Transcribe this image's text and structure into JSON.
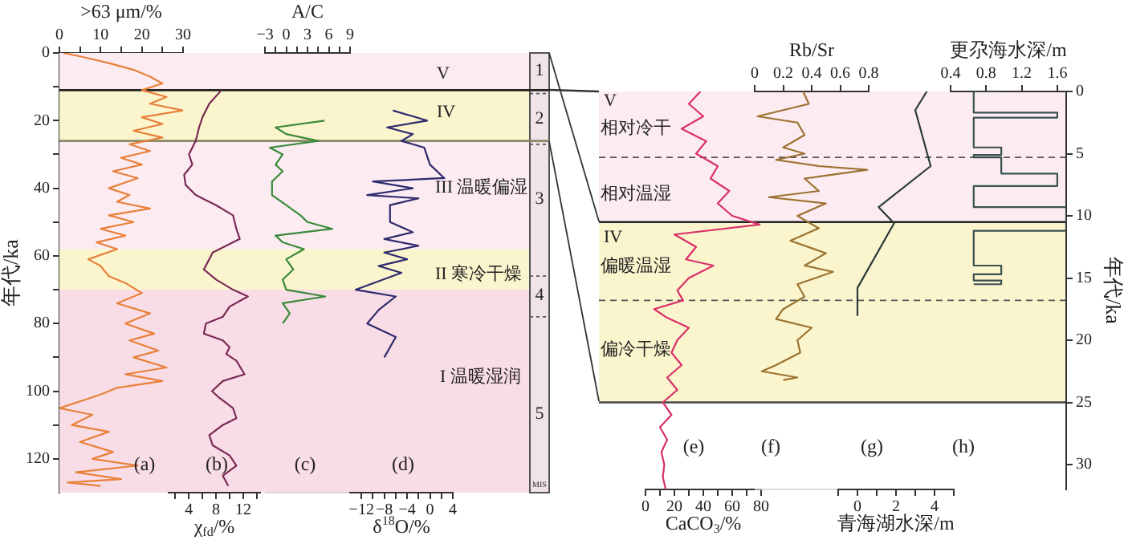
{
  "chart_data": [
    {
      "type": "line",
      "xlabel": ">63 μm/%",
      "ylabel": "年代/ka",
      "xlim": [
        0,
        30
      ],
      "xticks": [
        0,
        {
          "value": 5,
          "label": null
        },
        10,
        {
          "value": 15,
          "label": null
        },
        20,
        {
          "value": 25,
          "label": null
        },
        30
      ],
      "ylim": [
        130,
        0
      ],
      "yticks": [
        0,
        {
          "value": 10,
          "label": null
        },
        20,
        {
          "value": 30,
          "label": null
        },
        40,
        {
          "value": 50,
          "label": null
        },
        60,
        {
          "value": 70,
          "label": null
        },
        80,
        {
          "value": 90,
          "label": null
        },
        100,
        {
          "value": 110,
          "label": null
        },
        120
      ],
      "bands": [
        {
          "axis": "y",
          "from": 0,
          "to": 11,
          "color": "#fcecf2"
        },
        {
          "axis": "y",
          "from": 11,
          "to": 26,
          "color": "#fbf5cd"
        },
        {
          "axis": "y",
          "from": 26,
          "to": 58,
          "color": "#fcecf2"
        },
        {
          "axis": "y",
          "from": 58,
          "to": 70,
          "color": "#fbf5cd"
        },
        {
          "axis": "y",
          "from": 70,
          "to": 130,
          "color": "#f9dde6"
        }
      ],
      "ref_lines": [
        {
          "axis": "y",
          "value": 11,
          "color": "#222222"
        },
        {
          "axis": "y",
          "value": 26,
          "color": "#8a8a6a"
        }
      ],
      "annotations": [
        "(a)",
        "1",
        "2",
        "3",
        "4",
        "5",
        "MIS"
      ],
      "series": [
        {
          "color": "#e8803a",
          "x": [
            1,
            5,
            12,
            18,
            22,
            25,
            20,
            26,
            22,
            30,
            20,
            25,
            18,
            25,
            17,
            22,
            15,
            20,
            13,
            19,
            12,
            17,
            14,
            22,
            12,
            18,
            10,
            16,
            9,
            14,
            7,
            10,
            12,
            16,
            20,
            14,
            22,
            16,
            23,
            17,
            24,
            18,
            26,
            16,
            25,
            14,
            10,
            5,
            0,
            8,
            3,
            12,
            5,
            13,
            8,
            19,
            4,
            15,
            2,
            10
          ],
          "values": [
            0,
            1,
            3,
            5,
            7,
            9,
            11,
            13,
            15,
            17,
            19,
            21,
            23,
            25,
            27,
            29,
            31,
            33,
            35,
            37,
            40,
            42,
            44,
            46,
            48,
            50,
            52,
            54,
            56,
            58,
            61,
            63,
            66,
            68,
            71,
            74,
            77,
            80,
            83,
            85,
            88,
            90,
            93,
            95,
            97,
            99,
            101,
            103,
            105,
            107,
            110,
            112,
            115,
            118,
            120,
            122,
            124,
            126,
            127,
            128
          ]
        }
      ]
    },
    {
      "type": "line",
      "xlabel": "χ$_{fd}$/%",
      "xlim": [
        1,
        14.5
      ],
      "xticks": [
        {
          "value": 2,
          "label": null
        },
        4,
        {
          "value": 6,
          "label": null
        },
        8,
        {
          "value": 10,
          "label": null
        },
        12,
        {
          "value": 14,
          "label": null
        }
      ],
      "ylim": [
        130,
        0
      ],
      "tick_labels": "x",
      "annotations": [
        "(b)"
      ],
      "series": [
        {
          "color": "#7a2a55",
          "x": [
            8.8,
            7,
            6,
            5.5,
            5,
            4,
            4.5,
            3.3,
            3.5,
            5,
            8,
            10.5,
            11,
            11.5,
            9.5,
            7.5,
            7,
            6.2,
            8,
            10.5,
            12.7,
            10,
            9,
            6.5,
            6.2,
            9,
            10,
            9.5,
            11,
            12.2,
            9,
            7.4,
            8.5,
            10.5,
            11,
            9,
            7,
            7.5,
            10,
            11,
            9,
            9.8
          ],
          "values": [
            11,
            15,
            19,
            22,
            26,
            30,
            33,
            36,
            39,
            42,
            45,
            48,
            52,
            55,
            57,
            59,
            61,
            64,
            67,
            70,
            72,
            75,
            78,
            80,
            83,
            85,
            87,
            89,
            91,
            95,
            97,
            100,
            102,
            105,
            108,
            110,
            113,
            116,
            119,
            122,
            125,
            128
          ]
        }
      ]
    },
    {
      "type": "line",
      "xlabel": "A/C",
      "xlim": [
        -3,
        9
      ],
      "xticks": [
        {
          "value": -3,
          "label": "−3"
        },
        {
          "value": -1.5,
          "label": null
        },
        0,
        {
          "value": 1.5,
          "label": null
        },
        3,
        {
          "value": 4.5,
          "label": null
        },
        6,
        {
          "value": 7.5,
          "label": null
        },
        9
      ],
      "ylim": [
        130,
        0
      ],
      "tick_labels": "x",
      "annotations": [
        "(c)"
      ],
      "series": [
        {
          "color": "#3a8a3a",
          "x": [
            5.4,
            -1.5,
            0,
            4.5,
            -2.3,
            -0.5,
            -1.5,
            -0.5,
            -2,
            -2,
            0,
            2,
            3,
            6.5,
            -1.5,
            -0.5,
            2.5,
            0,
            1,
            -0.5,
            0,
            5.5,
            -0.5,
            0.5,
            -0.5
          ],
          "values": [
            20,
            22,
            24,
            26,
            28,
            30,
            33,
            35,
            38,
            42,
            45,
            48,
            50,
            52,
            54,
            56,
            58,
            61,
            64,
            67,
            70,
            72,
            74,
            77,
            80
          ]
        }
      ]
    },
    {
      "type": "line",
      "xlabel": "δ$^{18}$O/%",
      "xlim": [
        -14,
        4
      ],
      "xticks": [
        {
          "value": -12,
          "label": "−12"
        },
        {
          "value": -10,
          "label": null
        },
        {
          "value": -8,
          "label": "−8"
        },
        {
          "value": -6,
          "label": null
        },
        {
          "value": -4,
          "label": "−4"
        },
        {
          "value": -2,
          "label": null
        },
        0,
        {
          "value": 2,
          "label": null
        },
        4
      ],
      "ylim": [
        130,
        0
      ],
      "tick_labels": "x",
      "annotations": [
        "(d)",
        "V",
        "IV",
        "III 温暖偏湿",
        "II 寒冷干燥",
        "I 温暖湿润"
      ],
      "series": [
        {
          "color": "#2e2a6e",
          "x": [
            -6.5,
            -0.5,
            -7.5,
            -3,
            -5,
            -1,
            0,
            2.5,
            -10,
            -3,
            -11,
            -2,
            -7,
            -7,
            -3,
            -8,
            -2,
            -8,
            -4,
            -9,
            -5,
            -13,
            -6,
            -9,
            -11,
            -6,
            -7,
            -8
          ],
          "values": [
            17,
            20,
            22,
            24,
            26,
            28,
            33,
            37,
            38,
            40,
            42,
            43,
            45,
            50,
            53,
            55,
            57,
            59,
            61,
            63,
            65,
            70,
            72,
            76,
            80,
            84,
            87,
            90
          ]
        }
      ]
    },
    {
      "type": "line",
      "xlabel": "CaCO$_{3}$/%",
      "xlim": [
        0,
        80
      ],
      "xticks": [
        0,
        {
          "value": 10,
          "label": null
        },
        20,
        {
          "value": 30,
          "label": null
        },
        40,
        {
          "value": 50,
          "label": null
        },
        60,
        {
          "value": 70,
          "label": null
        },
        80
      ],
      "ylim": [
        32,
        0
      ],
      "tick_labels": "x",
      "bands": [
        {
          "axis": "y",
          "from": 0,
          "to": 10.5,
          "color": "#fcecf2"
        },
        {
          "axis": "y",
          "from": 10.5,
          "to": 25,
          "color": "#fbf5cd"
        }
      ],
      "ref_lines": [
        {
          "axis": "y",
          "value": 10.5,
          "color": "#222222"
        },
        {
          "axis": "y",
          "value": 25,
          "color": "#444444"
        },
        {
          "axis": "y",
          "value": 5.3,
          "color": "#555555",
          "line_style": "dashed"
        },
        {
          "axis": "y",
          "value": 16.8,
          "color": "#555555",
          "line_style": "dashed"
        }
      ],
      "annotations": [
        "(e)",
        "V",
        "相对冷干",
        "相对温湿",
        "IV",
        "偏暖温湿",
        "偏冷干燥"
      ],
      "series": [
        {
          "color": "#d9306a",
          "x": [
            38,
            30,
            40,
            25,
            42,
            35,
            50,
            45,
            58,
            50,
            60,
            79,
            20,
            35,
            28,
            47,
            30,
            22,
            26,
            6,
            15,
            30,
            22,
            18,
            25,
            15,
            22,
            12,
            18,
            10,
            15,
            11,
            13,
            12,
            14
          ],
          "values": [
            0,
            1,
            2,
            3,
            4,
            5,
            6,
            7,
            8,
            9,
            10,
            10.7,
            11.5,
            12.5,
            13.5,
            14,
            15,
            16,
            16.8,
            17.5,
            18.2,
            19,
            20,
            21,
            22,
            23,
            24,
            25,
            26,
            27,
            28,
            29,
            30,
            31,
            32
          ]
        }
      ]
    },
    {
      "type": "line",
      "xlabel": "Rb/Sr",
      "xlim": [
        0,
        0.8
      ],
      "xticks": [
        0,
        0.2,
        0.4,
        0.6,
        0.8
      ],
      "ylim": [
        32,
        0
      ],
      "tick_labels": "x",
      "annotations": [
        "(f)"
      ],
      "series": [
        {
          "color": "#9c7230",
          "x": [
            0.34,
            0.38,
            0.02,
            0.3,
            0.35,
            0.2,
            0.35,
            0.15,
            0.45,
            0.79,
            0.35,
            0.45,
            0.1,
            0.5,
            0.3,
            0.45,
            0.25,
            0.5,
            0.35,
            0.55,
            0.3,
            0.35,
            0.2,
            0.15,
            0.4,
            0.3,
            0.32,
            0.15,
            0.05,
            0.3,
            0.2
          ],
          "values": [
            0,
            1,
            2,
            2.5,
            3.5,
            4.5,
            5,
            5.5,
            6,
            6.3,
            7,
            8,
            8.5,
            9,
            10,
            11,
            12,
            13,
            14,
            14.5,
            15.5,
            16.5,
            17.5,
            18.3,
            19,
            20,
            21,
            22,
            22.5,
            23,
            23.2
          ]
        }
      ]
    },
    {
      "type": "line",
      "xlabel": "青海湖水深/m",
      "xlim": [
        -1,
        5
      ],
      "xticks": [
        {
          "value": -1,
          "label": null
        },
        0,
        {
          "value": 1,
          "label": null
        },
        2,
        {
          "value": 3,
          "label": null
        },
        4,
        {
          "value": 5,
          "label": null
        }
      ],
      "ylim": [
        32,
        0
      ],
      "tick_labels": "x",
      "annotations": [
        "(g)"
      ],
      "series": [
        {
          "color": "#2a3a3a",
          "x": [
            3.6,
            3.0,
            3.8,
            1.1,
            1.9,
            0,
            0
          ],
          "values": [
            0,
            1.5,
            6,
            9.3,
            10.6,
            15.8,
            18
          ]
        }
      ]
    },
    {
      "type": "line",
      "xlabel": "更尕海水深/m",
      "ylabel": "年代/ka",
      "xlim": [
        0.4,
        1.7
      ],
      "xticks": [
        0.4,
        0.8,
        1.2,
        1.6
      ],
      "ylim": [
        32,
        0
      ],
      "yticks": [
        0,
        5,
        10,
        15,
        20,
        25,
        30
      ],
      "annotations": [
        "(h)"
      ],
      "series": [
        {
          "color": "#3a5050",
          "x": [
            0.97,
            0.66,
            0.66,
            1.6,
            1.6,
            0.66,
            0.66,
            0.97,
            0.97,
            0.66,
            0.66,
            0.97,
            0.97,
            1.6,
            1.6,
            0.66,
            0.66,
            1.7,
            1.7,
            0.66,
            0.66,
            0.97,
            0.97,
            0.66,
            0.66,
            0.97,
            0.97,
            0.66
          ],
          "values": [
            0,
            0,
            1.7,
            1.7,
            2.1,
            2.1,
            4.5,
            4.5,
            5.1,
            5.1,
            5.3,
            5.3,
            6.6,
            6.6,
            7.6,
            7.6,
            9.3,
            9.3,
            11.2,
            11.2,
            14,
            14,
            14.7,
            14.7,
            15.2,
            15.2,
            15.5,
            15.5
          ]
        }
      ]
    }
  ]
}
